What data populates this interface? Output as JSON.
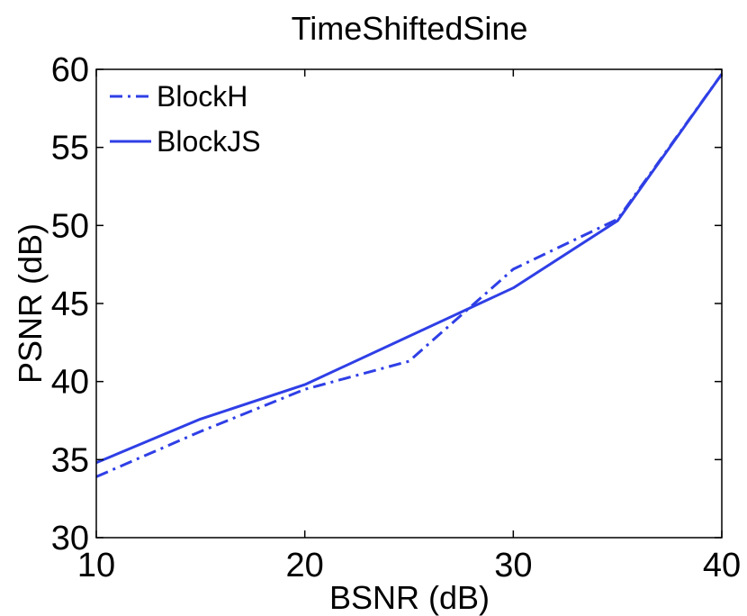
{
  "chart_data": {
    "type": "line",
    "title": "TimeShiftedSine",
    "xlabel": "BSNR (dB)",
    "ylabel": "PSNR (dB)",
    "xlim": [
      10,
      40
    ],
    "ylim": [
      30,
      60
    ],
    "xticks": [
      10,
      20,
      30,
      40
    ],
    "yticks": [
      30,
      35,
      40,
      45,
      50,
      55,
      60
    ],
    "grid": false,
    "legend_position": "top-left",
    "x": [
      10,
      15,
      20,
      25,
      30,
      35,
      40
    ],
    "series": [
      {
        "name": "BlockH",
        "style": "dash-dot",
        "color": "#2f3fe6",
        "values": [
          33.9,
          36.8,
          39.5,
          41.3,
          47.2,
          50.4,
          59.7
        ]
      },
      {
        "name": "BlockJS",
        "style": "solid",
        "color": "#2f3fe6",
        "values": [
          34.8,
          37.6,
          39.8,
          42.9,
          46.0,
          50.3,
          59.7
        ]
      }
    ]
  }
}
